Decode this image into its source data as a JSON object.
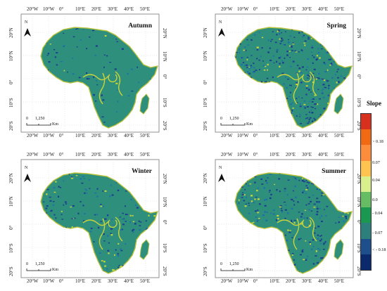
{
  "panels": [
    {
      "title": "Autumn",
      "top_ticks": [
        "20°W",
        "10°W",
        "0°",
        "10°E",
        "20°E",
        "30°E",
        "40°E",
        "50°E"
      ],
      "bottom_ticks": [
        "20°W",
        "10°W",
        "0°",
        "10°E",
        "20°E",
        "30°E",
        "40°E",
        "50°E"
      ],
      "left_ticks": [
        "20°N",
        "10°N",
        "0°",
        "10°S",
        "20°S"
      ],
      "right_ticks": [
        "20°N",
        "10°N",
        "0°",
        "10°S",
        "20°S"
      ],
      "scale": {
        "zero": "0",
        "distance": "1,250",
        "unit": "Km"
      },
      "north": "N"
    },
    {
      "title": "Spring",
      "top_ticks": [
        "20°W",
        "10°W",
        "0°",
        "10°E",
        "20°E",
        "30°E",
        "40°E",
        "50°E"
      ],
      "bottom_ticks": [
        "20°W",
        "10°W",
        "0°",
        "10°E",
        "20°E",
        "30°E",
        "40°E",
        "50°E"
      ],
      "left_ticks": [
        "20°N",
        "10°N",
        "0°",
        "10°S",
        "20°S"
      ],
      "right_ticks": [
        "20°N",
        "10°N",
        "0°",
        "10°S",
        "20°S"
      ],
      "scale": {
        "zero": "0",
        "distance": "1,250",
        "unit": "Km"
      },
      "north": "N"
    },
    {
      "title": "Winter",
      "top_ticks": [
        "20°W",
        "10°W",
        "0°",
        "10°E",
        "20°E",
        "30°E",
        "40°E",
        "50°E"
      ],
      "bottom_ticks": [
        "20°W",
        "10°W",
        "0°",
        "10°E",
        "20°E",
        "30°E",
        "40°E",
        "50°E"
      ],
      "left_ticks": [
        "20°N",
        "10°N",
        "0°",
        "10°S",
        "20°S"
      ],
      "right_ticks": [
        "20°N",
        "10°N",
        "0°",
        "10°S",
        "20°S"
      ],
      "scale": {
        "zero": "0",
        "distance": "1,250",
        "unit": "Km"
      },
      "north": "N"
    },
    {
      "title": "Summer",
      "top_ticks": [
        "20°W",
        "10°W",
        "0°",
        "10°E",
        "20°E",
        "30°E",
        "40°E",
        "50°E"
      ],
      "bottom_ticks": [
        "20°W",
        "10°W",
        "0°",
        "10°E",
        "20°E",
        "30°E",
        "40°E",
        "50°E"
      ],
      "left_ticks": [
        "20°N",
        "10°N",
        "0°",
        "10°S",
        "20°S"
      ],
      "right_ticks": [
        "20°N",
        "10°N",
        "0°",
        "10°S",
        "20°S"
      ],
      "scale": {
        "zero": "0",
        "distance": "1,250",
        "unit": "Km"
      },
      "north": "N"
    }
  ],
  "legend": {
    "title": "Slope",
    "labels": [
      "> 0.18",
      "0.07",
      "0.04",
      "0.0",
      "- 0.04",
      "- 0.07",
      "< - 0.18"
    ],
    "colors": [
      "#d7301f",
      "#f16913",
      "#fd8d3c",
      "#fec44f",
      "#d9ef8b",
      "#66bd63",
      "#1a9850",
      "#2c7f7a",
      "#1f4e8c",
      "#0b2a6e"
    ]
  },
  "colors": {
    "land": "#2f8f7d",
    "dry": "#1c3f8f",
    "wet": "#c9d43a",
    "coast": "#b8c23a"
  }
}
